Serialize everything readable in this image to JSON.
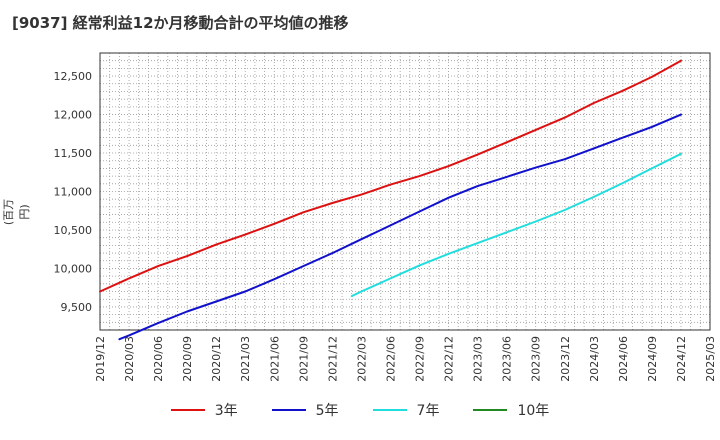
{
  "title": "[9037]  経常利益12か月移動合計の平均値の推移",
  "chart_data": {
    "type": "line",
    "title": "[9037]  経常利益12か月移動合計の平均値の推移",
    "ylabel": "(百万円)",
    "xlabel": "",
    "ylim": [
      9200,
      12800
    ],
    "yticks": [
      9500,
      10000,
      10500,
      11000,
      11500,
      12000,
      12500
    ],
    "ytick_labels": [
      "9,500",
      "10,000",
      "10,500",
      "11,000",
      "11,500",
      "12,000",
      "12,500"
    ],
    "x_range": [
      "2019/12",
      "2025/03"
    ],
    "xtick_labels": [
      "2019/12",
      "2020/03",
      "2020/06",
      "2020/09",
      "2020/12",
      "2021/03",
      "2021/06",
      "2021/09",
      "2021/12",
      "2022/03",
      "2022/06",
      "2022/09",
      "2022/12",
      "2023/03",
      "2023/06",
      "2023/09",
      "2023/12",
      "2024/03",
      "2024/06",
      "2024/09",
      "2024/12",
      "2025/03"
    ],
    "grid": true,
    "legend_position": "bottom",
    "series": [
      {
        "name": "3年",
        "color": "#dd1111",
        "x": [
          "2019/12",
          "2020/03",
          "2020/06",
          "2020/09",
          "2020/12",
          "2021/03",
          "2021/06",
          "2021/09",
          "2021/12",
          "2022/03",
          "2022/06",
          "2022/09",
          "2022/12",
          "2023/03",
          "2023/06",
          "2023/09",
          "2023/12",
          "2024/03",
          "2024/06",
          "2024/09",
          "2024/12"
        ],
        "values": [
          9700,
          9870,
          10030,
          10160,
          10310,
          10440,
          10580,
          10730,
          10850,
          10960,
          11090,
          11200,
          11330,
          11480,
          11640,
          11800,
          11960,
          12150,
          12310,
          12490,
          12700
        ]
      },
      {
        "name": "5年",
        "color": "#1111cc",
        "x": [
          "2020/02",
          "2020/03",
          "2020/06",
          "2020/09",
          "2020/12",
          "2021/03",
          "2021/06",
          "2021/09",
          "2021/12",
          "2022/03",
          "2022/06",
          "2022/09",
          "2022/12",
          "2023/03",
          "2023/06",
          "2023/09",
          "2023/12",
          "2024/03",
          "2024/06",
          "2024/09",
          "2024/12"
        ],
        "values": [
          9080,
          9130,
          9290,
          9440,
          9570,
          9700,
          9860,
          10030,
          10200,
          10380,
          10560,
          10740,
          10920,
          11070,
          11190,
          11310,
          11420,
          11560,
          11700,
          11840,
          12000
        ]
      },
      {
        "name": "7年",
        "color": "#22dddd",
        "x": [
          "2022/02",
          "2022/03",
          "2022/06",
          "2022/09",
          "2022/12",
          "2023/03",
          "2023/06",
          "2023/09",
          "2023/12",
          "2024/03",
          "2024/06",
          "2024/09",
          "2024/12"
        ],
        "values": [
          9640,
          9700,
          9870,
          10040,
          10190,
          10330,
          10470,
          10610,
          10760,
          10930,
          11110,
          11300,
          11490
        ]
      },
      {
        "name": "10年",
        "color": "#228822",
        "x": [],
        "values": []
      }
    ]
  }
}
